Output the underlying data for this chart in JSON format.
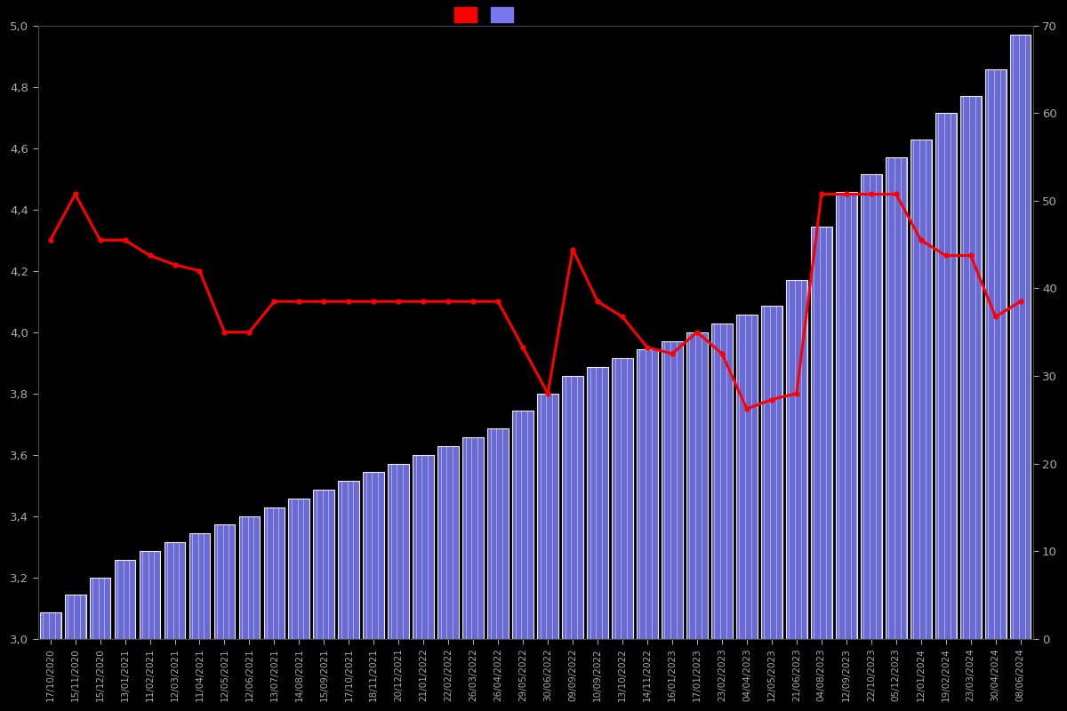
{
  "background_color": "#000000",
  "left_ylim": [
    3.0,
    5.0
  ],
  "right_ylim": [
    0,
    70
  ],
  "left_yticks": [
    3.0,
    3.2,
    3.4,
    3.6,
    3.8,
    4.0,
    4.2,
    4.4,
    4.6,
    4.8,
    5.0
  ],
  "right_yticks": [
    0,
    10,
    20,
    30,
    40,
    50,
    60,
    70
  ],
  "line_color": "#ff0000",
  "bar_facecolor": "#7777ee",
  "bar_edgecolor": "#ffffff",
  "tick_color": "#aaaaaa",
  "dates": [
    "17/10/2020",
    "15/11/2020",
    "15/12/2020",
    "13/01/2021",
    "11/02/2021",
    "12/03/2021",
    "11/04/2021",
    "12/05/2021",
    "12/06/2021",
    "13/07/2021",
    "14/08/2021",
    "15/09/2021",
    "17/10/2021",
    "18/11/2021",
    "20/12/2021",
    "21/01/2022",
    "22/02/2022",
    "26/03/2022",
    "26/04/2022",
    "29/05/2022",
    "30/06/2022",
    "09/09/2022",
    "10/09/2022",
    "13/10/2022",
    "14/11/2022",
    "16/01/2023",
    "17/01/2023",
    "23/02/2023",
    "04/04/2023",
    "12/05/2023",
    "21/06/2023",
    "04/08/2023",
    "12/09/2023",
    "22/10/2023",
    "05/12/2023",
    "12/01/2024",
    "19/02/2024",
    "23/03/2024",
    "30/04/2024",
    "08/06/2024"
  ],
  "ratings": [
    4.3,
    4.45,
    4.3,
    4.3,
    4.25,
    4.22,
    4.2,
    4.0,
    4.0,
    4.1,
    4.1,
    4.1,
    4.1,
    4.1,
    4.1,
    4.1,
    4.1,
    4.1,
    4.1,
    3.95,
    3.8,
    4.27,
    4.1,
    4.05,
    3.95,
    3.93,
    4.0,
    3.93,
    3.75,
    3.78,
    3.8,
    4.45,
    4.45,
    4.45,
    4.45,
    4.3,
    4.25,
    4.25,
    4.05,
    4.1
  ],
  "counts": [
    3,
    5,
    7,
    9,
    10,
    11,
    12,
    13,
    14,
    15,
    16,
    17,
    18,
    19,
    20,
    21,
    22,
    23,
    24,
    26,
    28,
    30,
    31,
    32,
    33,
    34,
    35,
    36,
    37,
    38,
    41,
    47,
    51,
    53,
    55,
    57,
    60,
    62,
    65,
    69
  ]
}
